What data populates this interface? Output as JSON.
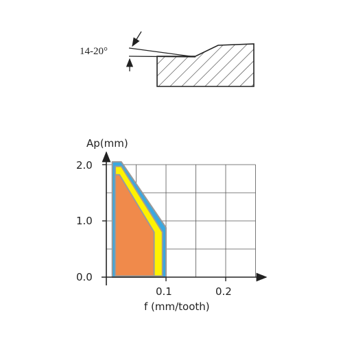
{
  "profile": {
    "angle_label": "14-20°"
  },
  "chart": {
    "y_label": "Ap(mm)",
    "x_label": "f (mm/tooth)",
    "y_ticks": [
      "2.0",
      "1.0",
      "0.0"
    ],
    "x_ticks": [
      "0.1",
      "0.2"
    ],
    "colors": {
      "blue": "#3aa8e0",
      "yellow": "#fff200",
      "orange": "#f08a4b",
      "outline": "#9a9a9a",
      "grid": "#555555"
    }
  },
  "chart_data": {
    "type": "area",
    "xlabel": "f (mm/tooth)",
    "ylabel": "Ap(mm)",
    "xlim": [
      0,
      0.25
    ],
    "ylim": [
      0,
      2.0
    ],
    "x_ticks": [
      "0.1",
      "0.2"
    ],
    "y_ticks": [
      "0.0",
      "1.0",
      "2.0"
    ],
    "grid": true,
    "regions": [
      {
        "color": "blue",
        "points": [
          [
            0.01,
            0.0
          ],
          [
            0.01,
            2.05
          ],
          [
            0.025,
            2.05
          ],
          [
            0.1,
            0.88
          ],
          [
            0.1,
            0.0
          ]
        ]
      },
      {
        "color": "yellow",
        "points": [
          [
            0.015,
            0.02
          ],
          [
            0.015,
            1.97
          ],
          [
            0.025,
            1.97
          ],
          [
            0.094,
            0.8
          ],
          [
            0.094,
            0.02
          ]
        ]
      },
      {
        "color": "orange",
        "points": [
          [
            0.015,
            0.02
          ],
          [
            0.015,
            1.82
          ],
          [
            0.022,
            1.82
          ],
          [
            0.08,
            0.8
          ],
          [
            0.08,
            0.02
          ]
        ]
      }
    ]
  }
}
